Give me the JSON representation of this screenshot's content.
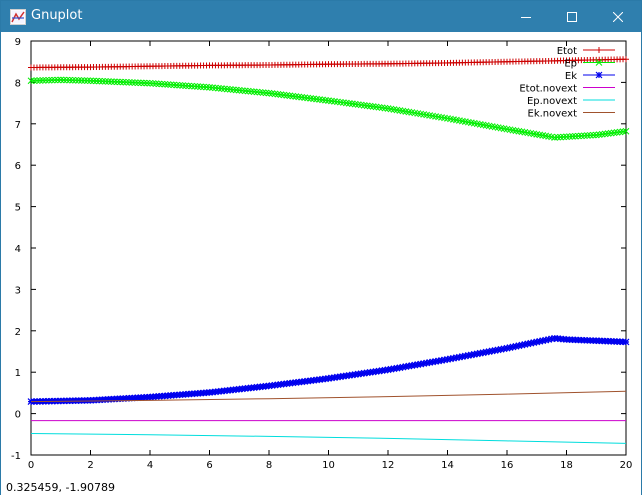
{
  "window": {
    "title": "Gnuplot",
    "title_color": "#2f7fae",
    "buttons": [
      "minimize",
      "maximize",
      "close"
    ]
  },
  "status": {
    "coordinates": "0.325459, -1.90789"
  },
  "chart_data": {
    "type": "line",
    "xlim": [
      0,
      20
    ],
    "ylim": [
      -1,
      9
    ],
    "x_ticks": [
      "0",
      "2",
      "4",
      "6",
      "8",
      "10",
      "12",
      "14",
      "16",
      "18",
      "20"
    ],
    "y_ticks": [
      "-1",
      "0",
      "1",
      "2",
      "3",
      "4",
      "5",
      "6",
      "7",
      "8",
      "9"
    ],
    "legend_position": "top-right",
    "grid": false,
    "series": [
      {
        "name": "Etot",
        "color": "#cc0000",
        "marker": "plus",
        "x": [
          0,
          2,
          4,
          6,
          8,
          10,
          12,
          14,
          16,
          17.6,
          18,
          20
        ],
        "y": [
          8.36,
          8.37,
          8.39,
          8.41,
          8.42,
          8.44,
          8.45,
          8.47,
          8.5,
          8.52,
          8.53,
          8.56
        ]
      },
      {
        "name": "Ep",
        "color": "#00ee00",
        "marker": "cross",
        "x": [
          0,
          1,
          2,
          4,
          6,
          8,
          10,
          12,
          14,
          16,
          17.6,
          19,
          20
        ],
        "y": [
          8.04,
          8.06,
          8.04,
          7.98,
          7.88,
          7.74,
          7.56,
          7.37,
          7.13,
          6.87,
          6.67,
          6.73,
          6.82
        ]
      },
      {
        "name": "Ek",
        "color": "#0000ee",
        "marker": "star",
        "x": [
          0,
          2,
          4,
          6,
          8,
          10,
          12,
          14,
          16,
          17.6,
          18,
          20
        ],
        "y": [
          0.29,
          0.32,
          0.4,
          0.51,
          0.67,
          0.85,
          1.06,
          1.31,
          1.58,
          1.82,
          1.79,
          1.73
        ]
      },
      {
        "name": "Etot.novext",
        "color": "#cc00cc",
        "marker": "none",
        "x": [
          0,
          20
        ],
        "y": [
          -0.17,
          -0.17
        ]
      },
      {
        "name": "Ep.novext",
        "color": "#00dddd",
        "marker": "none",
        "x": [
          0,
          4,
          8,
          12,
          16,
          20
        ],
        "y": [
          -0.48,
          -0.51,
          -0.55,
          -0.6,
          -0.66,
          -0.72
        ]
      },
      {
        "name": "Ek.novext",
        "color": "#a0522d",
        "marker": "none",
        "x": [
          0,
          4,
          8,
          12,
          16,
          20
        ],
        "y": [
          0.29,
          0.32,
          0.36,
          0.41,
          0.47,
          0.54
        ]
      }
    ]
  }
}
